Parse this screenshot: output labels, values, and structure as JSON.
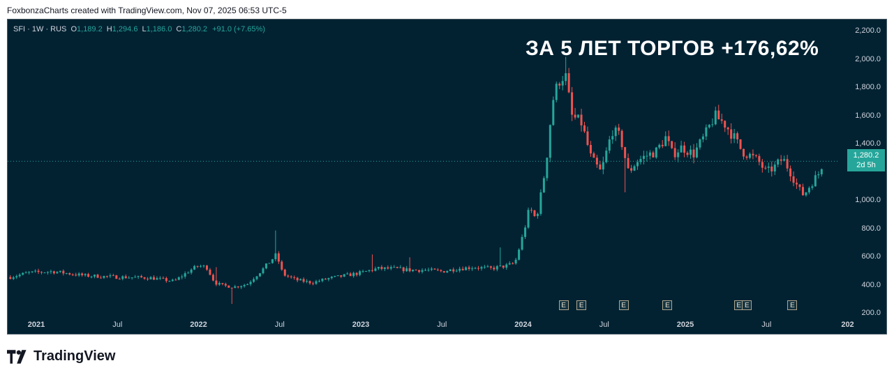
{
  "caption": "FoxbonzaCharts created with TradingView.com, Nov 07, 2025 06:53 UTC-5",
  "legend": {
    "symbol": "SFI · 1W · RUS",
    "open_label": "O",
    "open": "1,189.2",
    "high_label": "H",
    "high": "1,294.6",
    "low_label": "L",
    "low": "1,186.0",
    "close_label": "C",
    "close": "1,280.2",
    "change": "+91.0 (+7.65%)"
  },
  "headline": "ЗА 5 ЛЕТ ТОРГОВ +176,62%",
  "price_tag": {
    "price": "1,280.2",
    "countdown": "2d 5h"
  },
  "earnings_marker": "E",
  "brand": "TradingView",
  "colors": {
    "up": "#26a69a",
    "down": "#ef5350",
    "background": "#022232",
    "text": "#d1d4dc"
  },
  "chart_data": {
    "type": "candlestick",
    "interval": "1W",
    "current_price": 1280.2,
    "ylim": [
      100,
      2300
    ],
    "y_ticks": [
      "2,200.0",
      "2,000.0",
      "1,800.0",
      "1,600.0",
      "1,400.0",
      "1,000.0",
      "800.0",
      "600.0",
      "400.0",
      "200.0"
    ],
    "x_ticks": [
      {
        "label": "2021",
        "t": 2021.0,
        "major": true
      },
      {
        "label": "Jul",
        "t": 2021.5,
        "major": false
      },
      {
        "label": "2022",
        "t": 2022.0,
        "major": true
      },
      {
        "label": "Jul",
        "t": 2022.5,
        "major": false
      },
      {
        "label": "2023",
        "t": 2023.0,
        "major": true
      },
      {
        "label": "Jul",
        "t": 2023.5,
        "major": false
      },
      {
        "label": "2024",
        "t": 2024.0,
        "major": true
      },
      {
        "label": "Jul",
        "t": 2024.5,
        "major": false
      },
      {
        "label": "2025",
        "t": 2025.0,
        "major": true
      },
      {
        "label": "Jul",
        "t": 2025.5,
        "major": false
      },
      {
        "label": "202",
        "t": 2026.0,
        "major": true
      }
    ],
    "earnings_dates": [
      2024.25,
      2024.36,
      2024.62,
      2024.89,
      2025.33,
      2025.38,
      2025.66
    ],
    "price_path": [
      [
        2020.84,
        460
      ],
      [
        2020.95,
        490
      ],
      [
        2021.1,
        500
      ],
      [
        2021.3,
        470
      ],
      [
        2021.5,
        460
      ],
      [
        2021.7,
        455
      ],
      [
        2021.85,
        430
      ],
      [
        2021.95,
        510
      ],
      [
        2022.0,
        540
      ],
      [
        2022.05,
        530
      ],
      [
        2022.1,
        420
      ],
      [
        2022.15,
        400
      ],
      [
        2022.22,
        390
      ],
      [
        2022.3,
        410
      ],
      [
        2022.4,
        520
      ],
      [
        2022.48,
        620
      ],
      [
        2022.52,
        480
      ],
      [
        2022.6,
        440
      ],
      [
        2022.7,
        420
      ],
      [
        2022.8,
        450
      ],
      [
        2022.9,
        470
      ],
      [
        2023.0,
        490
      ],
      [
        2023.1,
        520
      ],
      [
        2023.2,
        520
      ],
      [
        2023.3,
        510
      ],
      [
        2023.4,
        510
      ],
      [
        2023.5,
        500
      ],
      [
        2023.6,
        520
      ],
      [
        2023.7,
        530
      ],
      [
        2023.8,
        520
      ],
      [
        2023.9,
        540
      ],
      [
        2023.95,
        560
      ],
      [
        2024.0,
        760
      ],
      [
        2024.04,
        950
      ],
      [
        2024.08,
        870
      ],
      [
        2024.12,
        1100
      ],
      [
        2024.15,
        1350
      ],
      [
        2024.18,
        1700
      ],
      [
        2024.22,
        1850
      ],
      [
        2024.26,
        1900
      ],
      [
        2024.3,
        1600
      ],
      [
        2024.36,
        1550
      ],
      [
        2024.42,
        1300
      ],
      [
        2024.48,
        1200
      ],
      [
        2024.55,
        1500
      ],
      [
        2024.6,
        1450
      ],
      [
        2024.65,
        1200
      ],
      [
        2024.7,
        1280
      ],
      [
        2024.76,
        1320
      ],
      [
        2024.82,
        1350
      ],
      [
        2024.88,
        1450
      ],
      [
        2024.92,
        1330
      ],
      [
        2024.98,
        1380
      ],
      [
        2025.05,
        1330
      ],
      [
        2025.12,
        1460
      ],
      [
        2025.18,
        1600
      ],
      [
        2025.24,
        1550
      ],
      [
        2025.3,
        1450
      ],
      [
        2025.35,
        1350
      ],
      [
        2025.4,
        1320
      ],
      [
        2025.45,
        1280
      ],
      [
        2025.5,
        1200
      ],
      [
        2025.55,
        1240
      ],
      [
        2025.6,
        1300
      ],
      [
        2025.65,
        1200
      ],
      [
        2025.7,
        1080
      ],
      [
        2025.73,
        1040
      ],
      [
        2025.78,
        1130
      ],
      [
        2025.82,
        1189.2
      ],
      [
        2025.85,
        1280.2
      ]
    ],
    "notable_highs": [
      [
        2022.1,
        530
      ],
      [
        2022.48,
        790
      ],
      [
        2023.07,
        620
      ],
      [
        2023.3,
        600
      ],
      [
        2023.85,
        670
      ],
      [
        2024.26,
        2020
      ],
      [
        2025.2,
        1680
      ]
    ],
    "notable_lows": [
      [
        2022.2,
        270
      ],
      [
        2024.62,
        1060
      ]
    ]
  }
}
